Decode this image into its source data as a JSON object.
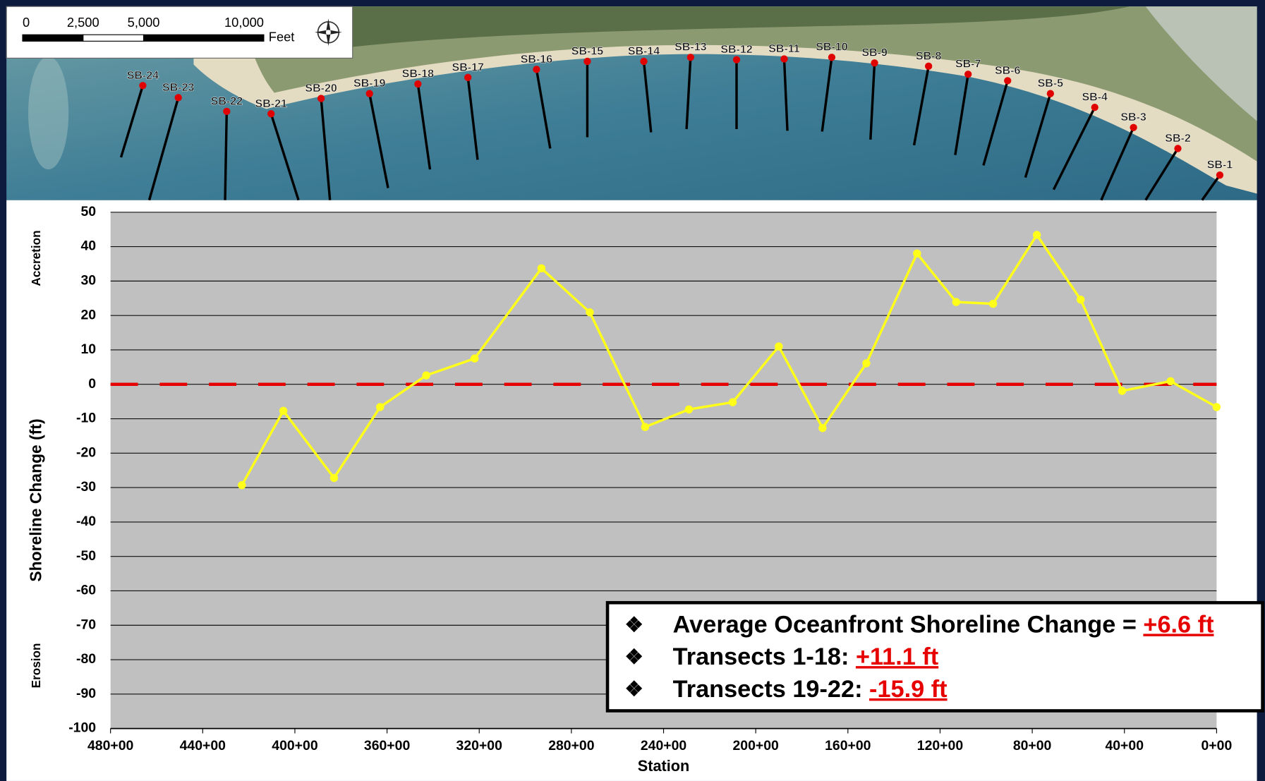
{
  "chart_data": {
    "type": "line",
    "ylabel": "Shoreline Change (ft)",
    "xlabel": "Station",
    "side_labels": {
      "top": "Accretion",
      "bottom": "Erosion"
    },
    "x": [
      42300,
      40500,
      38300,
      36300,
      34300,
      32200,
      29300,
      27200,
      24800,
      22900,
      21000,
      19000,
      17100,
      15200,
      13000,
      11300,
      9700,
      7800,
      5900,
      4100,
      2000,
      0
    ],
    "series": [
      {
        "color": "#ffff1a",
        "values": [
          -29.3,
          -7.7,
          -27.2,
          -6.6,
          2.6,
          7.5,
          33.7,
          20.9,
          -12.4,
          -7.3,
          -5.2,
          11.0,
          -12.7,
          6.1,
          38.0,
          23.9,
          23.4,
          43.4,
          24.6,
          -1.9,
          0.9,
          -6.6
        ]
      }
    ],
    "xlim": [
      48000,
      0
    ],
    "xticks": [
      {
        "value": 48000,
        "label": "480+00"
      },
      {
        "value": 44000,
        "label": "440+00"
      },
      {
        "value": 40000,
        "label": "400+00"
      },
      {
        "value": 36000,
        "label": "360+00"
      },
      {
        "value": 32000,
        "label": "320+00"
      },
      {
        "value": 28000,
        "label": "280+00"
      },
      {
        "value": 24000,
        "label": "240+00"
      },
      {
        "value": 20000,
        "label": "200+00"
      },
      {
        "value": 16000,
        "label": "160+00"
      },
      {
        "value": 12000,
        "label": "120+00"
      },
      {
        "value": 8000,
        "label": "80+00"
      },
      {
        "value": 4000,
        "label": "40+00"
      },
      {
        "value": 0,
        "label": "0+00"
      }
    ],
    "ylim": [
      -100,
      50
    ],
    "yticks": [
      -100,
      -90,
      -80,
      -70,
      -60,
      -50,
      -40,
      -30,
      -20,
      -10,
      0,
      10,
      20,
      30,
      40,
      50
    ],
    "grid": true,
    "plot_background": "#c0c0c0",
    "reference_line": {
      "value": 0,
      "color": "#e60000"
    },
    "annotation_box": {
      "bullet": "❖",
      "items": [
        {
          "text": "Average Oceanfront Shoreline Change =",
          "value_text": "+6.6 ft"
        },
        {
          "text": "Transects 1-18:",
          "value_text": "+11.1 ft"
        },
        {
          "text": "Transects 19-22:",
          "value_text": "-15.9 ft"
        }
      ]
    }
  },
  "map": {
    "scale_bar": {
      "labels": [
        "0",
        "2,500",
        "5,000",
        "10,000"
      ],
      "unit": "Feet"
    },
    "transects": [
      "SB-1",
      "SB-2",
      "SB-3",
      "SB-4",
      "SB-5",
      "SB-6",
      "SB-7",
      "SB-8",
      "SB-9",
      "SB-10",
      "SB-11",
      "SB-12",
      "SB-13",
      "SB-14",
      "SB-15",
      "SB-16",
      "SB-17",
      "SB-18",
      "SB-19",
      "SB-20",
      "SB-21",
      "SB-22",
      "SB-23",
      "SB-24"
    ]
  }
}
